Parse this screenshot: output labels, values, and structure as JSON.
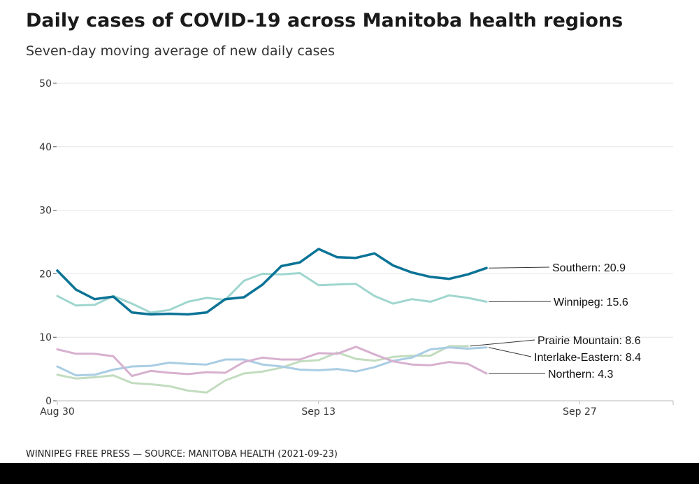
{
  "header": {
    "title": "Daily cases of COVID-19 across Manitoba health regions",
    "subtitle": "Seven-day moving average of new daily cases"
  },
  "footer": {
    "credit": "WINNIPEG FREE PRESS — SOURCE: MANITOBA HEALTH (2021-09-23)"
  },
  "chart_data": {
    "type": "line",
    "title": "Daily cases of COVID-19 across Manitoba health regions",
    "subtitle": "Seven-day moving average of new daily cases",
    "xlabel": "",
    "ylabel": "",
    "ylim": [
      0,
      50
    ],
    "yticks": [
      0,
      10,
      20,
      30,
      40,
      50
    ],
    "xlim": [
      "2021-08-30",
      "2021-10-02"
    ],
    "xticks": [
      {
        "date": "2021-08-30",
        "label": "Aug 30"
      },
      {
        "date": "2021-09-13",
        "label": "Sep 13"
      },
      {
        "date": "2021-09-27",
        "label": "Sep 27"
      }
    ],
    "grid": true,
    "legend": "direct labels at line ends",
    "x": [
      "2021-08-30",
      "2021-08-31",
      "2021-09-01",
      "2021-09-02",
      "2021-09-03",
      "2021-09-04",
      "2021-09-05",
      "2021-09-06",
      "2021-09-07",
      "2021-09-08",
      "2021-09-09",
      "2021-09-10",
      "2021-09-11",
      "2021-09-12",
      "2021-09-13",
      "2021-09-14",
      "2021-09-15",
      "2021-09-16",
      "2021-09-17",
      "2021-09-18",
      "2021-09-19",
      "2021-09-20",
      "2021-09-21",
      "2021-09-22",
      "2021-09-23"
    ],
    "series": [
      {
        "name": "Southern",
        "label": "Southern: 20.9",
        "color": "#0a7396",
        "width": 3.5,
        "values": [
          20.5,
          17.5,
          16.0,
          16.4,
          13.9,
          13.6,
          13.7,
          13.6,
          13.9,
          16.0,
          16.3,
          18.3,
          21.2,
          21.8,
          23.9,
          22.6,
          22.5,
          23.2,
          21.3,
          20.2,
          19.5,
          19.2,
          19.9,
          20.9,
          null
        ]
      },
      {
        "name": "Winnipeg",
        "label": "Winnipeg: 15.6",
        "color": "#9fd6cf",
        "width": 3,
        "values": [
          16.5,
          15.0,
          15.1,
          16.5,
          15.3,
          13.9,
          14.3,
          15.6,
          16.2,
          15.9,
          18.9,
          20.0,
          19.9,
          20.1,
          18.2,
          18.3,
          18.4,
          16.5,
          15.3,
          16.0,
          15.6,
          16.6,
          16.2,
          15.6,
          null
        ]
      },
      {
        "name": "Prairie Mountain",
        "label": "Prairie Mountain:  8.6",
        "color": "#c2dcbf",
        "width": 3,
        "values": [
          4.1,
          3.5,
          3.7,
          4.0,
          2.8,
          2.6,
          2.3,
          1.6,
          1.3,
          3.2,
          4.3,
          4.6,
          5.2,
          6.2,
          6.4,
          7.6,
          6.6,
          6.3,
          6.9,
          7.1,
          7.1,
          8.6,
          8.6,
          null,
          null
        ]
      },
      {
        "name": "Interlake-Eastern",
        "label": "Interlake-Eastern:  8.4",
        "color": "#a9cde3",
        "width": 3,
        "values": [
          5.4,
          4.0,
          4.1,
          4.9,
          5.4,
          5.5,
          6.0,
          5.8,
          5.7,
          6.5,
          6.5,
          5.7,
          5.4,
          4.9,
          4.8,
          5.0,
          4.6,
          5.3,
          6.3,
          6.8,
          8.1,
          8.4,
          8.2,
          8.4,
          null
        ]
      },
      {
        "name": "Northern",
        "label": "Northern:  4.3",
        "color": "#d7b0cf",
        "width": 3,
        "values": [
          8.1,
          7.4,
          7.4,
          7.0,
          3.9,
          4.7,
          4.4,
          4.2,
          4.5,
          4.4,
          6.1,
          6.8,
          6.5,
          6.5,
          7.5,
          7.4,
          8.5,
          7.3,
          6.2,
          5.7,
          5.6,
          6.1,
          5.8,
          4.3,
          null
        ]
      }
    ]
  }
}
